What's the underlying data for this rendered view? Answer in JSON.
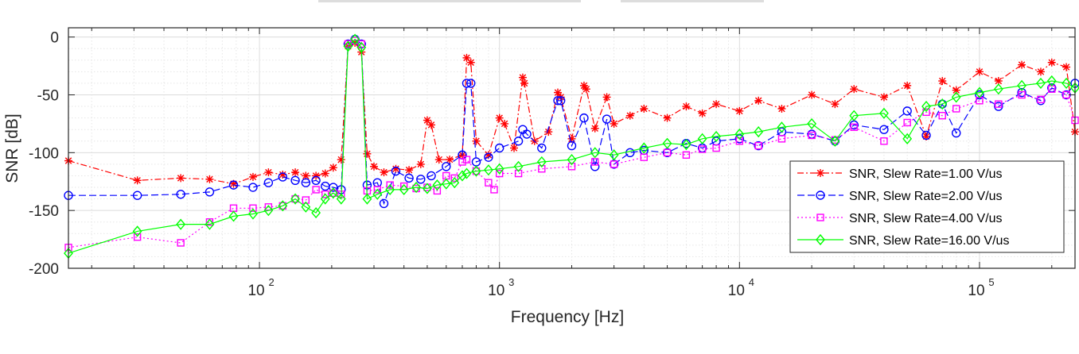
{
  "chart_data": {
    "type": "line",
    "title": "",
    "xlabel": "Frequency [Hz]",
    "ylabel": "SNR [dB]",
    "xscale": "log",
    "xlim": [
      16,
      250000
    ],
    "ylim": [
      -200,
      8
    ],
    "yticks": [
      0,
      -50,
      -100,
      -150,
      -200
    ],
    "ytick_labels": [
      "0",
      "-50",
      "-100",
      "-150",
      "-200"
    ],
    "xticks": [
      100,
      1000,
      10000,
      100000
    ],
    "xtick_labels": [
      {
        "base": "10",
        "exp": "2"
      },
      {
        "base": "10",
        "exp": "3"
      },
      {
        "base": "10",
        "exp": "4"
      },
      {
        "base": "10",
        "exp": "5"
      }
    ],
    "grid": true,
    "legend_location": "bottom-right",
    "series": [
      {
        "name": "SNR, Slew Rate=1.00 V/us",
        "color": "#ff0000",
        "line_style": "dash-dot",
        "marker": "asterisk",
        "points": [
          [
            16,
            -107
          ],
          [
            31,
            -124
          ],
          [
            47,
            -122
          ],
          [
            62,
            -123
          ],
          [
            78,
            -127
          ],
          [
            94,
            -121
          ],
          [
            109,
            -117
          ],
          [
            125,
            -119
          ],
          [
            141,
            -117
          ],
          [
            156,
            -120
          ],
          [
            172,
            -120
          ],
          [
            188,
            -118
          ],
          [
            203,
            -113
          ],
          [
            219,
            -106
          ],
          [
            234,
            -8
          ],
          [
            250,
            -5
          ],
          [
            266,
            -13
          ],
          [
            281,
            -101
          ],
          [
            300,
            -112
          ],
          [
            330,
            -117
          ],
          [
            370,
            -114
          ],
          [
            420,
            -115
          ],
          [
            470,
            -110
          ],
          [
            500,
            -72
          ],
          [
            520,
            -76
          ],
          [
            560,
            -106
          ],
          [
            620,
            -106
          ],
          [
            700,
            -102
          ],
          [
            730,
            -18
          ],
          [
            760,
            -22
          ],
          [
            800,
            -90
          ],
          [
            900,
            -102
          ],
          [
            1000,
            -70
          ],
          [
            1050,
            -75
          ],
          [
            1150,
            -96
          ],
          [
            1250,
            -35
          ],
          [
            1270,
            -40
          ],
          [
            1400,
            -90
          ],
          [
            1600,
            -82
          ],
          [
            1750,
            -48
          ],
          [
            1800,
            -52
          ],
          [
            2000,
            -88
          ],
          [
            2250,
            -42
          ],
          [
            2300,
            -45
          ],
          [
            2500,
            -79
          ],
          [
            2800,
            -52
          ],
          [
            3000,
            -75
          ],
          [
            3500,
            -68
          ],
          [
            4000,
            -62
          ],
          [
            5000,
            -70
          ],
          [
            6000,
            -60
          ],
          [
            7000,
            -66
          ],
          [
            8000,
            -58
          ],
          [
            10000,
            -64
          ],
          [
            12000,
            -55
          ],
          [
            15000,
            -62
          ],
          [
            20000,
            -50
          ],
          [
            25000,
            -58
          ],
          [
            30000,
            -45
          ],
          [
            40000,
            -52
          ],
          [
            50000,
            -42
          ],
          [
            60000,
            -86
          ],
          [
            70000,
            -38
          ],
          [
            80000,
            -46
          ],
          [
            100000,
            -30
          ],
          [
            120000,
            -38
          ],
          [
            150000,
            -24
          ],
          [
            180000,
            -30
          ],
          [
            200000,
            -22
          ],
          [
            230000,
            -26
          ],
          [
            250000,
            -82
          ]
        ]
      },
      {
        "name": "SNR, Slew Rate=2.00 V/us",
        "color": "#0000ff",
        "line_style": "dashed",
        "marker": "circle",
        "points": [
          [
            16,
            -137
          ],
          [
            31,
            -137
          ],
          [
            47,
            -136
          ],
          [
            62,
            -134
          ],
          [
            78,
            -128
          ],
          [
            94,
            -130
          ],
          [
            109,
            -126
          ],
          [
            125,
            -121
          ],
          [
            141,
            -124
          ],
          [
            156,
            -126
          ],
          [
            172,
            -124
          ],
          [
            188,
            -129
          ],
          [
            203,
            -130
          ],
          [
            219,
            -132
          ],
          [
            234,
            -6
          ],
          [
            250,
            -2
          ],
          [
            266,
            -6
          ],
          [
            281,
            -128
          ],
          [
            310,
            -126
          ],
          [
            330,
            -144
          ],
          [
            370,
            -116
          ],
          [
            420,
            -122
          ],
          [
            470,
            -123
          ],
          [
            520,
            -120
          ],
          [
            600,
            -112
          ],
          [
            700,
            -102
          ],
          [
            730,
            -40
          ],
          [
            760,
            -40
          ],
          [
            800,
            -108
          ],
          [
            900,
            -104
          ],
          [
            1000,
            -96
          ],
          [
            1200,
            -90
          ],
          [
            1250,
            -80
          ],
          [
            1300,
            -84
          ],
          [
            1500,
            -96
          ],
          [
            1750,
            -55
          ],
          [
            1800,
            -55
          ],
          [
            2000,
            -94
          ],
          [
            2250,
            -70
          ],
          [
            2500,
            -112
          ],
          [
            2800,
            -71
          ],
          [
            3000,
            -110
          ],
          [
            3500,
            -100
          ],
          [
            4000,
            -98
          ],
          [
            5000,
            -100
          ],
          [
            6000,
            -92
          ],
          [
            7000,
            -96
          ],
          [
            8000,
            -90
          ],
          [
            10000,
            -88
          ],
          [
            12000,
            -94
          ],
          [
            15000,
            -82
          ],
          [
            20000,
            -84
          ],
          [
            25000,
            -90
          ],
          [
            30000,
            -76
          ],
          [
            40000,
            -80
          ],
          [
            50000,
            -64
          ],
          [
            60000,
            -85
          ],
          [
            70000,
            -58
          ],
          [
            80000,
            -83
          ],
          [
            100000,
            -50
          ],
          [
            120000,
            -60
          ],
          [
            150000,
            -48
          ],
          [
            180000,
            -55
          ],
          [
            200000,
            -44
          ],
          [
            230000,
            -50
          ],
          [
            250000,
            -40
          ]
        ]
      },
      {
        "name": "SNR, Slew Rate=4.00 V/us",
        "color": "#ff00ff",
        "line_style": "dotted",
        "marker": "square",
        "points": [
          [
            16,
            -182
          ],
          [
            31,
            -173
          ],
          [
            47,
            -178
          ],
          [
            62,
            -160
          ],
          [
            78,
            -148
          ],
          [
            94,
            -148
          ],
          [
            109,
            -147
          ],
          [
            125,
            -146
          ],
          [
            141,
            -140
          ],
          [
            156,
            -141
          ],
          [
            172,
            -132
          ],
          [
            188,
            -136
          ],
          [
            203,
            -135
          ],
          [
            219,
            -136
          ],
          [
            234,
            -6
          ],
          [
            250,
            -3
          ],
          [
            266,
            -6
          ],
          [
            281,
            -133
          ],
          [
            310,
            -132
          ],
          [
            350,
            -128
          ],
          [
            400,
            -129
          ],
          [
            450,
            -131
          ],
          [
            500,
            -130
          ],
          [
            550,
            -133
          ],
          [
            600,
            -120
          ],
          [
            650,
            -122
          ],
          [
            700,
            -108
          ],
          [
            730,
            -106
          ],
          [
            800,
            -116
          ],
          [
            900,
            -126
          ],
          [
            950,
            -132
          ],
          [
            1000,
            -118
          ],
          [
            1200,
            -118
          ],
          [
            1500,
            -114
          ],
          [
            2000,
            -112
          ],
          [
            2500,
            -108
          ],
          [
            3000,
            -110
          ],
          [
            4000,
            -104
          ],
          [
            5000,
            -100
          ],
          [
            6000,
            -102
          ],
          [
            7000,
            -97
          ],
          [
            8000,
            -96
          ],
          [
            10000,
            -90
          ],
          [
            12000,
            -94
          ],
          [
            15000,
            -88
          ],
          [
            20000,
            -85
          ],
          [
            25000,
            -89
          ],
          [
            30000,
            -78
          ],
          [
            40000,
            -90
          ],
          [
            50000,
            -74
          ],
          [
            60000,
            -65
          ],
          [
            70000,
            -68
          ],
          [
            80000,
            -62
          ],
          [
            100000,
            -55
          ],
          [
            120000,
            -58
          ],
          [
            150000,
            -50
          ],
          [
            180000,
            -54
          ],
          [
            200000,
            -45
          ],
          [
            230000,
            -50
          ],
          [
            250000,
            -72
          ]
        ]
      },
      {
        "name": "SNR, Slew Rate=16.00 V/us",
        "color": "#00ff00",
        "line_style": "solid",
        "marker": "diamond",
        "points": [
          [
            16,
            -187
          ],
          [
            31,
            -168
          ],
          [
            47,
            -162
          ],
          [
            62,
            -162
          ],
          [
            78,
            -155
          ],
          [
            94,
            -153
          ],
          [
            109,
            -150
          ],
          [
            125,
            -146
          ],
          [
            141,
            -140
          ],
          [
            156,
            -147
          ],
          [
            172,
            -152
          ],
          [
            188,
            -140
          ],
          [
            203,
            -135
          ],
          [
            219,
            -140
          ],
          [
            234,
            -8
          ],
          [
            250,
            -2
          ],
          [
            266,
            -9
          ],
          [
            281,
            -140
          ],
          [
            310,
            -136
          ],
          [
            350,
            -132
          ],
          [
            400,
            -132
          ],
          [
            450,
            -130
          ],
          [
            500,
            -131
          ],
          [
            550,
            -128
          ],
          [
            600,
            -127
          ],
          [
            650,
            -126
          ],
          [
            700,
            -120
          ],
          [
            730,
            -118
          ],
          [
            800,
            -116
          ],
          [
            900,
            -115
          ],
          [
            1000,
            -114
          ],
          [
            1200,
            -112
          ],
          [
            1500,
            -108
          ],
          [
            2000,
            -106
          ],
          [
            2500,
            -100
          ],
          [
            3000,
            -102
          ],
          [
            4000,
            -96
          ],
          [
            5000,
            -92
          ],
          [
            6000,
            -93
          ],
          [
            7000,
            -88
          ],
          [
            8000,
            -86
          ],
          [
            10000,
            -84
          ],
          [
            12000,
            -82
          ],
          [
            15000,
            -78
          ],
          [
            20000,
            -75
          ],
          [
            25000,
            -90
          ],
          [
            30000,
            -68
          ],
          [
            40000,
            -66
          ],
          [
            50000,
            -88
          ],
          [
            60000,
            -60
          ],
          [
            70000,
            -58
          ],
          [
            80000,
            -52
          ],
          [
            100000,
            -48
          ],
          [
            120000,
            -45
          ],
          [
            150000,
            -42
          ],
          [
            180000,
            -40
          ],
          [
            200000,
            -38
          ],
          [
            230000,
            -40
          ],
          [
            250000,
            -44
          ]
        ]
      }
    ]
  }
}
